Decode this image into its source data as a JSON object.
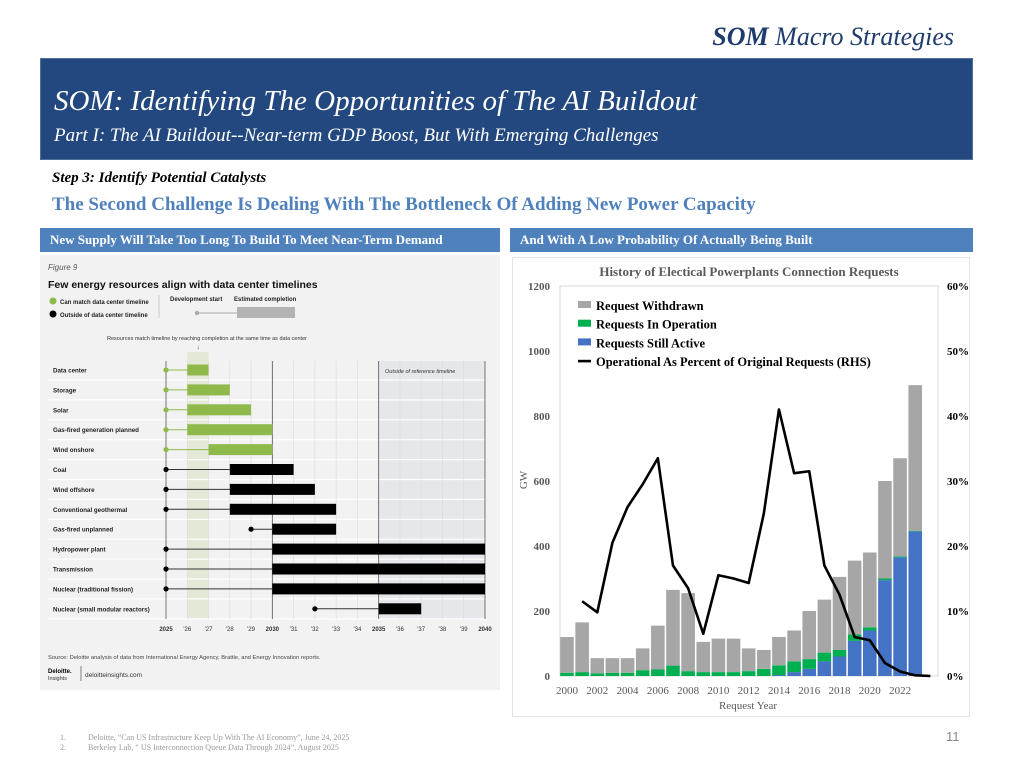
{
  "header": {
    "brand_bold": "SOM",
    "brand_rest": " Macro Strategies",
    "title": "SOM: Identifying The Opportunities of The AI Buildout",
    "subtitle": "Part I: The AI Buildout--Near-term GDP Boost, But With Emerging Challenges"
  },
  "step": "Step 3: Identify Potential Catalysts",
  "headline": "The Second Challenge Is Dealing With The Bottleneck Of Adding New Power Capacity",
  "left_panel": {
    "header": "New Supply Will Take Too Long To Build To Meet Near-Term Demand"
  },
  "right_panel": {
    "header": "And With A Low Probability Of Actually Being Built"
  },
  "colors": {
    "banner": "#23487f",
    "accent": "#4f81bd",
    "green": "#8fba4b",
    "black": "#000000",
    "withdrawn": "#a6a6a6",
    "operation": "#00b050",
    "active": "#4472c4"
  },
  "chart_data": [
    {
      "type": "gantt",
      "figure_label": "Figure 9",
      "title": "Few energy resources align with data center timelines",
      "legend": {
        "green": "Can match data center timeline",
        "black": "Outside of data center timeline",
        "dev_start": "Development start",
        "est_completion": "Estimated completion"
      },
      "annotation": "Resources match timeline by reaching completion at the same time as data center",
      "outside_label": "Outside of reference timeline",
      "x_ticks": [
        "2025",
        "'26",
        "'27",
        "'28",
        "'29",
        "2030",
        "'31",
        "'32",
        "'33",
        "'34",
        "2035",
        "'36",
        "'37",
        "'38",
        "'39",
        "2040"
      ],
      "xlim": [
        2025,
        2040
      ],
      "match_band": [
        2026,
        2027
      ],
      "outside_range": [
        2035,
        2040
      ],
      "rows": [
        {
          "label": "Data center",
          "dev_start": 2025,
          "bar_start": 2026,
          "completion": 2027,
          "match": true
        },
        {
          "label": "Storage",
          "dev_start": 2025,
          "bar_start": 2026,
          "completion": 2028,
          "match": true
        },
        {
          "label": "Solar",
          "dev_start": 2025,
          "bar_start": 2026,
          "completion": 2029,
          "match": true
        },
        {
          "label": "Gas-fired generation planned",
          "dev_start": 2025,
          "bar_start": 2026,
          "completion": 2030,
          "match": true
        },
        {
          "label": "Wind onshore",
          "dev_start": 2025,
          "bar_start": 2027,
          "completion": 2030,
          "match": true
        },
        {
          "label": "Coal",
          "dev_start": 2025,
          "bar_start": 2028,
          "completion": 2031,
          "match": false
        },
        {
          "label": "Wind offshore",
          "dev_start": 2025,
          "bar_start": 2028,
          "completion": 2032,
          "match": false
        },
        {
          "label": "Conventional geothermal",
          "dev_start": 2025,
          "bar_start": 2028,
          "completion": 2033,
          "match": false
        },
        {
          "label": "Gas-fired unplanned",
          "dev_start": 2029,
          "bar_start": 2030,
          "completion": 2033,
          "match": false
        },
        {
          "label": "Hydropower plant",
          "dev_start": 2025,
          "bar_start": 2030,
          "completion": 2040,
          "match": false
        },
        {
          "label": "Transmission",
          "dev_start": 2025,
          "bar_start": 2030,
          "completion": 2040,
          "match": false
        },
        {
          "label": "Nuclear (traditional fission)",
          "dev_start": 2025,
          "bar_start": 2030,
          "completion": 2040,
          "match": false
        },
        {
          "label": "Nuclear (small modular reactors)",
          "dev_start": 2032,
          "bar_start": 2035,
          "completion": 2037,
          "match": false
        }
      ],
      "source": "Source: Deloitte analysis of data from International Energy Agency, Brattle, and Energy Innovation reports.",
      "logo_text": "Deloitte. Insights",
      "site": "deloitteinsights.com"
    },
    {
      "type": "bar+line",
      "title": "History of Electical Powerplants Connection Requests",
      "xlabel": "Request Year",
      "ylabel": "GW",
      "ylim": [
        0,
        1200
      ],
      "y_ticks": [
        "0",
        "200",
        "400",
        "600",
        "800",
        "1000",
        "1200"
      ],
      "y2lim": [
        0,
        60
      ],
      "y2_ticks": [
        "0%",
        "10%",
        "20%",
        "30%",
        "40%",
        "50%",
        "60%"
      ],
      "x_tick_labels": [
        "2000",
        "2002",
        "2004",
        "2006",
        "2008",
        "2010",
        "2012",
        "2014",
        "2016",
        "2018",
        "2020",
        "2022"
      ],
      "categories": [
        2000,
        2001,
        2002,
        2003,
        2004,
        2005,
        2006,
        2007,
        2008,
        2009,
        2010,
        2011,
        2012,
        2013,
        2014,
        2015,
        2016,
        2017,
        2018,
        2019,
        2020,
        2021,
        2022,
        2023
      ],
      "series": [
        {
          "name": "Requests Still Active",
          "type": "stacked-bar",
          "values": [
            0,
            0,
            0,
            0,
            0,
            0,
            0,
            0,
            0,
            0,
            0,
            0,
            0,
            0,
            3,
            12,
            22,
            45,
            60,
            108,
            140,
            295,
            365,
            445
          ]
        },
        {
          "name": "Requests In Operation",
          "type": "stacked-bar",
          "values": [
            10,
            12,
            8,
            10,
            10,
            18,
            20,
            32,
            15,
            12,
            12,
            12,
            15,
            22,
            30,
            33,
            30,
            27,
            20,
            20,
            10,
            5,
            3,
            2
          ]
        },
        {
          "name": "Request Withdrawn",
          "type": "stacked-bar",
          "values": [
            110,
            153,
            47,
            45,
            45,
            67,
            135,
            233,
            240,
            93,
            103,
            103,
            70,
            58,
            87,
            95,
            148,
            163,
            225,
            227,
            230,
            300,
            302,
            448
          ]
        },
        {
          "name": "Operational As Percent of Original Requests (RHS)",
          "type": "line",
          "axis": "right",
          "x": [
            2001,
            2002,
            2003,
            2004,
            2005,
            2006,
            2007,
            2008,
            2009,
            2010,
            2011,
            2012,
            2013,
            2014,
            2015,
            2016,
            2017,
            2018,
            2019,
            2020,
            2021,
            2022,
            2023,
            2024
          ],
          "values": [
            11.5,
            9.8,
            20.5,
            26,
            29.5,
            33.5,
            17,
            13.5,
            6.5,
            15.5,
            15,
            14.3,
            25,
            41,
            31.2,
            31.5,
            17,
            12.5,
            6,
            5.5,
            2,
            0.7,
            0.1,
            0
          ]
        }
      ],
      "legend_order": [
        "Request Withdrawn",
        "Requests In Operation",
        "Requests Still Active",
        "Operational As Percent of Original Requests (RHS)"
      ],
      "legend_position": "top-left"
    }
  ],
  "footnotes": [
    {
      "num": "1.",
      "text": "Deloitte, “Can US Infrastructure Keep Up With The AI Economy”, June 24, 2025"
    },
    {
      "num": "2.",
      "text": "Berkeley Lab, “ US Interconnection Queue Data Through 2024”, August 2025"
    }
  ],
  "page_number": "11"
}
